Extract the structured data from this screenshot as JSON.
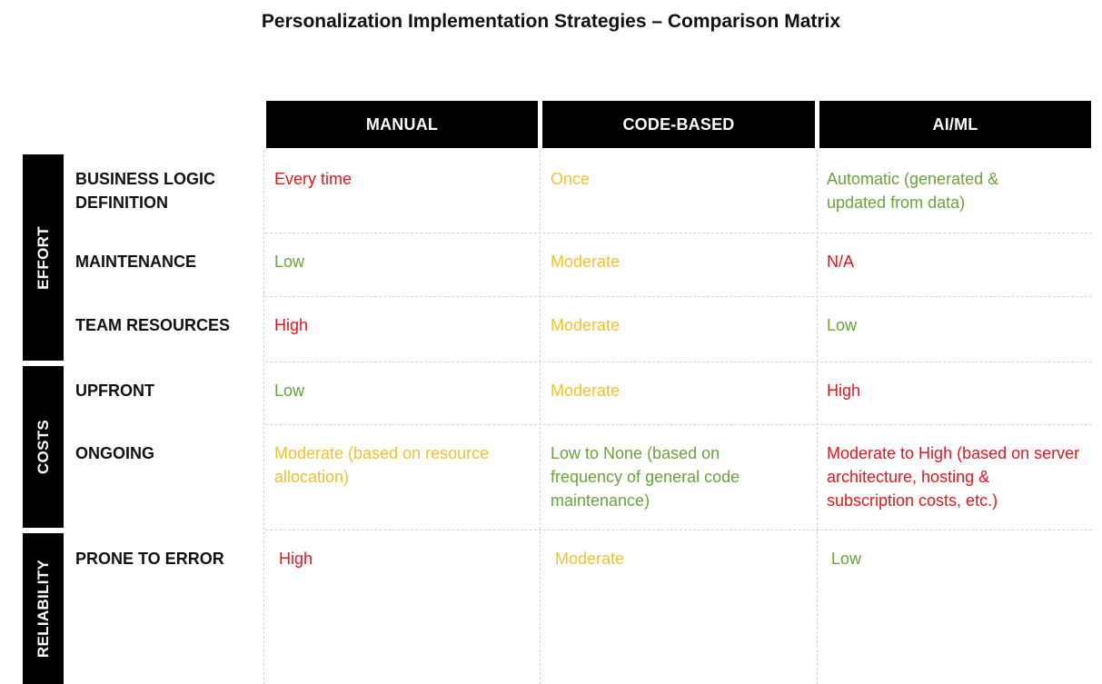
{
  "title": "Personalization Implementation Strategies – Comparison Matrix",
  "columns": [
    "MANUAL",
    "CODE-BASED",
    "AI/ML"
  ],
  "groups": [
    "EFFORT",
    "COSTS",
    "RELIABILITY"
  ],
  "rows": [
    {
      "label_line1": "BUSINESS LOGIC",
      "label_line2": "DEFINITION",
      "cells": [
        {
          "text": "Every time",
          "color": "#e8141c"
        },
        {
          "text": "Once",
          "color": "#f2c12e"
        },
        {
          "text": "Automatic (generated & updated from data)",
          "color": "#6aa23c"
        }
      ]
    },
    {
      "label_line1": "MAINTENANCE",
      "cells": [
        {
          "text": "Low",
          "color": "#6aa23c"
        },
        {
          "text": "Moderate",
          "color": "#f2c12e"
        },
        {
          "text": "N/A",
          "color": "#e8141c"
        }
      ]
    },
    {
      "label_line1": "TEAM RESOURCES",
      "cells": [
        {
          "text": "High",
          "color": "#e8141c"
        },
        {
          "text": "Moderate",
          "color": "#f2c12e"
        },
        {
          "text": "Low",
          "color": "#6aa23c"
        }
      ]
    },
    {
      "label_line1": "UPFRONT",
      "cells": [
        {
          "text": "Low",
          "color": "#6aa23c"
        },
        {
          "text": "Moderate",
          "color": "#f2c12e"
        },
        {
          "text": "High",
          "color": "#e8141c"
        }
      ]
    },
    {
      "label_line1": "ONGOING",
      "cells": [
        {
          "text": "Moderate (based on resource allocation)",
          "color": "#f2c12e"
        },
        {
          "text": "Low to None (based on frequency of general code maintenance)",
          "color": "#6aa23c"
        },
        {
          "text": "Moderate to High (based on server architecture, hosting & subscription costs, etc.)",
          "color": "#e8141c"
        }
      ]
    },
    {
      "label_line1": "PRONE TO ERROR",
      "cells": [
        {
          "text": "High",
          "color": "#e8141c"
        },
        {
          "text": "Moderate",
          "color": "#f2c12e"
        },
        {
          "text": "Low",
          "color": "#6aa23c"
        }
      ]
    }
  ]
}
